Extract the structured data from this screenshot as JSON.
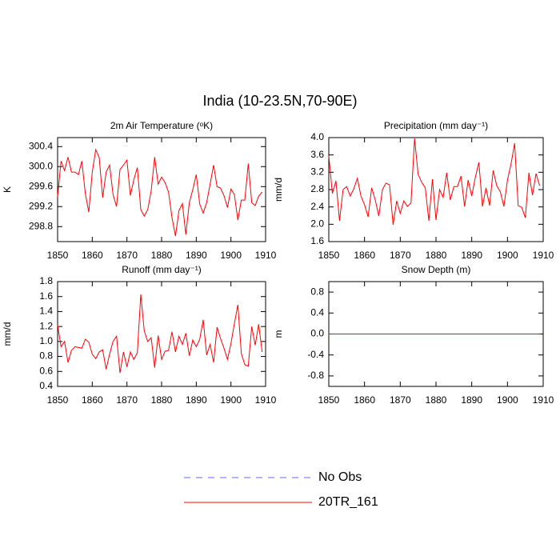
{
  "title": "India (10-23.5N,70-90E)",
  "legend": [
    {
      "label": "No Obs",
      "color": "#6666ff",
      "dash": "8 7"
    },
    {
      "label": "20TR_161",
      "color": "#ff0000"
    }
  ],
  "chart_data": [
    {
      "type": "line",
      "title": "2m Air Temperature (ᵒK)",
      "y_label": "K",
      "x": [
        1850,
        1851,
        1852,
        1853,
        1854,
        1855,
        1856,
        1857,
        1858,
        1859,
        1860,
        1861,
        1862,
        1863,
        1864,
        1865,
        1866,
        1867,
        1868,
        1869,
        1870,
        1871,
        1872,
        1873,
        1874,
        1875,
        1876,
        1877,
        1878,
        1879,
        1880,
        1881,
        1882,
        1883,
        1884,
        1885,
        1886,
        1887,
        1888,
        1889,
        1890,
        1891,
        1892,
        1893,
        1894,
        1895,
        1896,
        1897,
        1898,
        1899,
        1900,
        1901,
        1902,
        1903,
        1904,
        1905,
        1906,
        1907,
        1908,
        1909
      ],
      "series": [
        {
          "color": "#ff0000",
          "values": [
            299.4,
            300.11,
            299.92,
            300.19,
            299.89,
            299.89,
            299.84,
            300.11,
            299.46,
            299.09,
            299.89,
            300.34,
            300.18,
            299.38,
            299.89,
            300.03,
            299.44,
            299.2,
            299.94,
            300.03,
            300.13,
            299.42,
            299.74,
            299.98,
            299.14,
            299.01,
            299.14,
            299.52,
            300.19,
            299.65,
            299.79,
            299.68,
            299.49,
            298.98,
            298.61,
            299.12,
            299.26,
            298.64,
            299.28,
            299.54,
            299.84,
            299.25,
            299.07,
            299.28,
            299.65,
            300.03,
            299.6,
            299.57,
            299.42,
            299.18,
            299.55,
            299.44,
            298.93,
            299.33,
            299.33,
            300.06,
            299.28,
            299.22,
            299.41,
            299.49
          ]
        }
      ],
      "xlim": [
        1850,
        1910
      ],
      "xticks": [
        1850,
        1860,
        1870,
        1880,
        1890,
        1900,
        1910
      ],
      "ylim": [
        298.5,
        300.58
      ],
      "yticks": [
        298.8,
        299.2,
        299.6,
        {
          "value": 300,
          "label": "300.0"
        },
        300.4
      ]
    },
    {
      "type": "line",
      "title": "Precipitation (mm day⁻¹)",
      "y_label": "mm/d",
      "x": [
        1850,
        1851,
        1852,
        1853,
        1854,
        1855,
        1856,
        1857,
        1858,
        1859,
        1860,
        1861,
        1862,
        1863,
        1864,
        1865,
        1866,
        1867,
        1868,
        1869,
        1870,
        1871,
        1872,
        1873,
        1874,
        1875,
        1876,
        1877,
        1878,
        1879,
        1880,
        1881,
        1882,
        1883,
        1884,
        1885,
        1886,
        1887,
        1888,
        1889,
        1890,
        1891,
        1892,
        1893,
        1894,
        1895,
        1896,
        1897,
        1898,
        1899,
        1900,
        1901,
        1902,
        1903,
        1904,
        1905,
        1906,
        1907,
        1908,
        1909
      ],
      "series": [
        {
          "color": "#ff0000",
          "values": [
            3.58,
            2.71,
            3.0,
            2.08,
            2.8,
            2.87,
            2.65,
            2.82,
            3.06,
            2.65,
            2.45,
            2.17,
            2.84,
            2.56,
            2.19,
            2.8,
            2.95,
            2.91,
            1.99,
            2.54,
            2.25,
            2.54,
            2.41,
            2.49,
            3.98,
            3.15,
            2.97,
            2.84,
            2.08,
            3.04,
            2.1,
            2.8,
            2.62,
            3.19,
            2.56,
            2.87,
            2.87,
            3.11,
            2.41,
            3.02,
            2.65,
            3.08,
            3.43,
            2.41,
            2.84,
            2.43,
            3.24,
            2.89,
            2.75,
            2.41,
            3.02,
            3.39,
            3.87,
            2.43,
            2.39,
            2.15,
            3.19,
            2.67,
            3.17,
            2.89
          ]
        }
      ],
      "xlim": [
        1850,
        1910
      ],
      "xticks": [
        1850,
        1860,
        1870,
        1880,
        1890,
        1900,
        1910
      ],
      "ylim": [
        1.6,
        4.0
      ],
      "yticks": [
        1.6,
        {
          "value": 2,
          "label": "2.0"
        },
        2.4,
        2.8,
        3.2,
        3.6,
        {
          "value": 4,
          "label": "4.0"
        }
      ]
    },
    {
      "type": "line",
      "title": "Runoff (mm day⁻¹)",
      "y_label": "mm/d",
      "x": [
        1850,
        1851,
        1852,
        1853,
        1854,
        1855,
        1856,
        1857,
        1858,
        1859,
        1860,
        1861,
        1862,
        1863,
        1864,
        1865,
        1866,
        1867,
        1868,
        1869,
        1870,
        1871,
        1872,
        1873,
        1874,
        1875,
        1876,
        1877,
        1878,
        1879,
        1880,
        1881,
        1882,
        1883,
        1884,
        1885,
        1886,
        1887,
        1888,
        1889,
        1890,
        1891,
        1892,
        1893,
        1894,
        1895,
        1896,
        1897,
        1898,
        1899,
        1900,
        1901,
        1902,
        1903,
        1904,
        1905,
        1906,
        1907,
        1908,
        1909
      ],
      "series": [
        {
          "color": "#ff0000",
          "values": [
            1.22,
            0.93,
            1.0,
            0.72,
            0.88,
            0.93,
            0.92,
            0.91,
            1.03,
            0.99,
            0.83,
            0.77,
            0.86,
            0.89,
            0.63,
            0.83,
            1.0,
            1.07,
            0.58,
            0.86,
            0.66,
            0.86,
            0.76,
            0.85,
            1.63,
            1.14,
            1.0,
            1.05,
            0.65,
            1.08,
            0.76,
            0.87,
            0.88,
            1.13,
            0.86,
            1.07,
            0.96,
            1.11,
            0.81,
            1.02,
            0.93,
            1.03,
            1.29,
            0.82,
            0.96,
            0.72,
            1.19,
            1.04,
            0.91,
            0.76,
            0.97,
            1.24,
            1.49,
            0.84,
            0.69,
            0.67,
            1.2,
            0.95,
            1.23,
            0.86
          ]
        }
      ],
      "xlim": [
        1850,
        1910
      ],
      "xticks": [
        1850,
        1860,
        1870,
        1880,
        1890,
        1900,
        1910
      ],
      "ylim": [
        0.4,
        1.8
      ],
      "yticks": [
        0.4,
        0.6,
        0.8,
        {
          "value": 1,
          "label": "1.0"
        },
        1.2,
        1.4,
        1.6,
        1.8
      ]
    },
    {
      "type": "line",
      "title": "Snow Depth (m)",
      "y_label": "m",
      "x": [
        1850,
        1851,
        1852,
        1853,
        1854,
        1855,
        1856,
        1857,
        1858,
        1859,
        1860,
        1861,
        1862,
        1863,
        1864,
        1865,
        1866,
        1867,
        1868,
        1869,
        1870,
        1871,
        1872,
        1873,
        1874,
        1875,
        1876,
        1877,
        1878,
        1879,
        1880,
        1881,
        1882,
        1883,
        1884,
        1885,
        1886,
        1887,
        1888,
        1889,
        1890,
        1891,
        1892,
        1893,
        1894,
        1895,
        1896,
        1897,
        1898,
        1899,
        1900,
        1901,
        1902,
        1903,
        1904,
        1905,
        1906,
        1907,
        1908,
        1909
      ],
      "series": [
        {
          "color": "#ff0000",
          "values": [
            0,
            0,
            0,
            0,
            0,
            0,
            0,
            0,
            0,
            0,
            0,
            0,
            0,
            0,
            0,
            0,
            0,
            0,
            0,
            0,
            0,
            0,
            0,
            0,
            0,
            0,
            0,
            0,
            0,
            0,
            0,
            0,
            0,
            0,
            0,
            0,
            0,
            0,
            0,
            0,
            0,
            0,
            0,
            0,
            0,
            0,
            0,
            0,
            0,
            0,
            0,
            0,
            0,
            0,
            0,
            0,
            0,
            0,
            0,
            0
          ]
        }
      ],
      "xlim": [
        1850,
        1910
      ],
      "xticks": [
        1850,
        1860,
        1870,
        1880,
        1890,
        1900,
        1910
      ],
      "ylim": [
        -1,
        1
      ],
      "yticks": [
        -0.8,
        -0.4,
        {
          "value": 0,
          "label": "0.0"
        },
        0.4,
        0.8
      ]
    }
  ]
}
